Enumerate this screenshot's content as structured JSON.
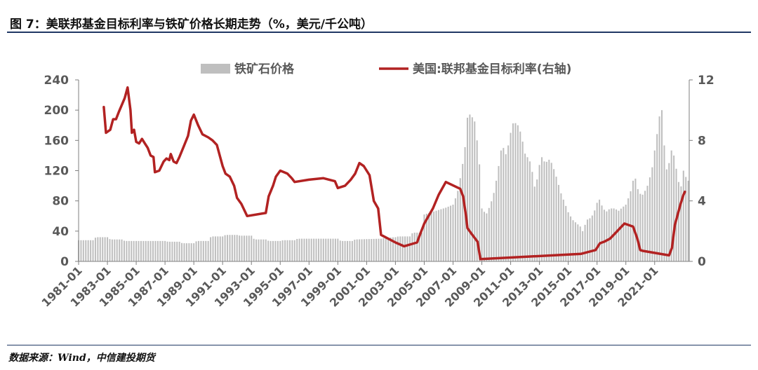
{
  "title": "图 7：美联邦基金目标利率与铁矿价格长期走势（%，美元/千公吨）",
  "source": "数据来源：Wind，中信建投期货",
  "chart_data": {
    "type": "bar+line",
    "title": "图 7：美联邦基金目标利率与铁矿价格长期走势（%，美元/千公吨）",
    "legend": {
      "placement": "top-center"
    },
    "y_left": {
      "ticks": [
        "0",
        "40",
        "80",
        "120",
        "160",
        "200",
        "240"
      ],
      "ylim": [
        0,
        240
      ]
    },
    "y_right": {
      "ticks": [
        "0",
        "4",
        "8",
        "12"
      ],
      "ylim": [
        0,
        12
      ]
    },
    "x_ticks": [
      "1981-01",
      "1983-01",
      "1985-01",
      "1987-01",
      "1989-01",
      "1991-01",
      "1993-01",
      "1995-01",
      "1997-01",
      "1999-01",
      "2001-01",
      "2003-01",
      "2005-01",
      "2007-01",
      "2009-01",
      "2011-01",
      "2013-01",
      "2015-01",
      "2017-01",
      "2019-01",
      "2021-01"
    ],
    "x_range": [
      1981.0,
      2023.4
    ],
    "series": [
      {
        "name": "铁矿石价格",
        "type": "bar",
        "axis": "left",
        "color": "#bfbfbf",
        "points": [
          [
            1981.0,
            28
          ],
          [
            1982.0,
            28
          ],
          [
            1982.2,
            32
          ],
          [
            1983.0,
            32
          ],
          [
            1983.2,
            29
          ],
          [
            1984.0,
            29
          ],
          [
            1984.2,
            27
          ],
          [
            1987.0,
            27
          ],
          [
            1987.2,
            26
          ],
          [
            1988.0,
            26
          ],
          [
            1988.2,
            24
          ],
          [
            1989.0,
            24
          ],
          [
            1989.2,
            27
          ],
          [
            1990.0,
            27
          ],
          [
            1990.2,
            33
          ],
          [
            1991.0,
            33
          ],
          [
            1991.2,
            35
          ],
          [
            1992.0,
            35
          ],
          [
            1992.2,
            34
          ],
          [
            1993.0,
            34
          ],
          [
            1993.2,
            29
          ],
          [
            1994.0,
            29
          ],
          [
            1994.2,
            27
          ],
          [
            1995.0,
            27
          ],
          [
            1995.2,
            28
          ],
          [
            1996.0,
            28
          ],
          [
            1996.2,
            30
          ],
          [
            1999.0,
            30
          ],
          [
            1999.2,
            27
          ],
          [
            2000.0,
            27
          ],
          [
            2000.2,
            29
          ],
          [
            2002.0,
            30
          ],
          [
            2002.2,
            31
          ],
          [
            2003.0,
            32
          ],
          [
            2003.2,
            33
          ],
          [
            2004.0,
            33
          ],
          [
            2004.2,
            38
          ],
          [
            2004.9,
            38
          ],
          [
            2005.0,
            62
          ],
          [
            2005.5,
            65
          ],
          [
            2006.0,
            68
          ],
          [
            2006.5,
            71
          ],
          [
            2007.0,
            75
          ],
          [
            2007.3,
            90
          ],
          [
            2007.6,
            120
          ],
          [
            2007.9,
            160
          ],
          [
            2008.0,
            190
          ],
          [
            2008.2,
            195
          ],
          [
            2008.5,
            185
          ],
          [
            2008.8,
            140
          ],
          [
            2009.0,
            70
          ],
          [
            2009.3,
            62
          ],
          [
            2009.6,
            75
          ],
          [
            2009.9,
            95
          ],
          [
            2010.2,
            130
          ],
          [
            2010.4,
            155
          ],
          [
            2010.7,
            140
          ],
          [
            2011.0,
            170
          ],
          [
            2011.2,
            185
          ],
          [
            2011.5,
            180
          ],
          [
            2011.8,
            165
          ],
          [
            2011.9,
            145
          ],
          [
            2012.1,
            140
          ],
          [
            2012.4,
            130
          ],
          [
            2012.7,
            95
          ],
          [
            2012.9,
            115
          ],
          [
            2013.1,
            140
          ],
          [
            2013.4,
            130
          ],
          [
            2013.7,
            135
          ],
          [
            2013.9,
            128
          ],
          [
            2014.2,
            110
          ],
          [
            2014.5,
            90
          ],
          [
            2014.8,
            75
          ],
          [
            2015.0,
            65
          ],
          [
            2015.3,
            55
          ],
          [
            2015.6,
            50
          ],
          [
            2015.9,
            45
          ],
          [
            2016.0,
            40
          ],
          [
            2016.3,
            55
          ],
          [
            2016.6,
            58
          ],
          [
            2016.9,
            70
          ],
          [
            2017.1,
            85
          ],
          [
            2017.3,
            75
          ],
          [
            2017.6,
            65
          ],
          [
            2017.9,
            70
          ],
          [
            2018.2,
            70
          ],
          [
            2018.5,
            67
          ],
          [
            2018.8,
            72
          ],
          [
            2019.0,
            75
          ],
          [
            2019.3,
            90
          ],
          [
            2019.6,
            115
          ],
          [
            2019.9,
            90
          ],
          [
            2020.2,
            88
          ],
          [
            2020.5,
            100
          ],
          [
            2020.8,
            120
          ],
          [
            2021.1,
            160
          ],
          [
            2021.3,
            185
          ],
          [
            2021.45,
            215
          ],
          [
            2021.6,
            170
          ],
          [
            2021.8,
            120
          ],
          [
            2022.0,
            130
          ],
          [
            2022.2,
            150
          ],
          [
            2022.4,
            135
          ],
          [
            2022.6,
            110
          ],
          [
            2022.8,
            95
          ],
          [
            2023.0,
            120
          ],
          [
            2023.2,
            110
          ],
          [
            2023.4,
            105
          ]
        ]
      },
      {
        "name": "美国:联邦基金目标利率(右轴)",
        "type": "line",
        "axis": "right",
        "color": "#b22222",
        "points": [
          [
            1982.75,
            10.2
          ],
          [
            1982.9,
            8.5
          ],
          [
            1983.2,
            8.7
          ],
          [
            1983.4,
            9.4
          ],
          [
            1983.6,
            9.4
          ],
          [
            1983.8,
            9.9
          ],
          [
            1984.2,
            10.8
          ],
          [
            1984.4,
            11.5
          ],
          [
            1984.6,
            10.0
          ],
          [
            1984.7,
            8.5
          ],
          [
            1984.85,
            8.7
          ],
          [
            1985.0,
            7.9
          ],
          [
            1985.2,
            7.8
          ],
          [
            1985.4,
            8.1
          ],
          [
            1985.6,
            7.8
          ],
          [
            1985.8,
            7.5
          ],
          [
            1986.0,
            7.0
          ],
          [
            1986.2,
            6.9
          ],
          [
            1986.3,
            5.9
          ],
          [
            1986.6,
            6.0
          ],
          [
            1986.9,
            6.6
          ],
          [
            1987.1,
            6.8
          ],
          [
            1987.3,
            6.7
          ],
          [
            1987.4,
            7.1
          ],
          [
            1987.6,
            6.6
          ],
          [
            1987.8,
            6.5
          ],
          [
            1988.0,
            6.9
          ],
          [
            1988.3,
            7.6
          ],
          [
            1988.6,
            8.3
          ],
          [
            1988.8,
            9.3
          ],
          [
            1989.0,
            9.7
          ],
          [
            1989.3,
            9.0
          ],
          [
            1989.6,
            8.4
          ],
          [
            1990.0,
            8.2
          ],
          [
            1990.3,
            8.0
          ],
          [
            1990.6,
            7.7
          ],
          [
            1990.8,
            7.0
          ],
          [
            1991.0,
            6.3
          ],
          [
            1991.2,
            5.8
          ],
          [
            1991.5,
            5.6
          ],
          [
            1991.8,
            5.0
          ],
          [
            1992.0,
            4.2
          ],
          [
            1992.3,
            3.8
          ],
          [
            1992.7,
            3.0
          ],
          [
            1994.0,
            3.2
          ],
          [
            1994.2,
            4.3
          ],
          [
            1994.5,
            5.0
          ],
          [
            1994.7,
            5.6
          ],
          [
            1995.0,
            6.0
          ],
          [
            1995.5,
            5.8
          ],
          [
            1995.8,
            5.5
          ],
          [
            1996.0,
            5.25
          ],
          [
            1997.0,
            5.4
          ],
          [
            1998.0,
            5.5
          ],
          [
            1998.8,
            5.3
          ],
          [
            1999.0,
            4.85
          ],
          [
            1999.5,
            5.0
          ],
          [
            1999.9,
            5.4
          ],
          [
            2000.2,
            5.8
          ],
          [
            2000.5,
            6.5
          ],
          [
            2000.8,
            6.3
          ],
          [
            2001.0,
            6.0
          ],
          [
            2001.2,
            5.7
          ],
          [
            2001.5,
            4.0
          ],
          [
            2001.8,
            3.5
          ],
          [
            2002.0,
            1.75
          ],
          [
            2003.0,
            1.25
          ],
          [
            2003.6,
            1.0
          ],
          [
            2004.5,
            1.25
          ],
          [
            2004.8,
            2.0
          ],
          [
            2005.0,
            2.5
          ],
          [
            2005.3,
            3.0
          ],
          [
            2005.6,
            3.5
          ],
          [
            2006.0,
            4.4
          ],
          [
            2006.5,
            5.25
          ],
          [
            2007.5,
            4.8
          ],
          [
            2007.7,
            4.3
          ],
          [
            2007.9,
            3.0
          ],
          [
            2008.0,
            2.2
          ],
          [
            2008.3,
            1.8
          ],
          [
            2008.7,
            1.3
          ],
          [
            2008.9,
            0.15
          ],
          [
            2015.9,
            0.5
          ],
          [
            2016.9,
            0.75
          ],
          [
            2017.2,
            1.2
          ],
          [
            2017.5,
            1.3
          ],
          [
            2017.9,
            1.5
          ],
          [
            2018.3,
            1.9
          ],
          [
            2018.6,
            2.2
          ],
          [
            2018.9,
            2.5
          ],
          [
            2019.5,
            2.3
          ],
          [
            2019.8,
            1.5
          ],
          [
            2020.0,
            0.75
          ],
          [
            2020.15,
            0.7
          ],
          [
            2022.0,
            0.4
          ],
          [
            2022.2,
            0.9
          ],
          [
            2022.4,
            2.4
          ],
          [
            2022.6,
            3.1
          ],
          [
            2022.8,
            3.8
          ],
          [
            2023.0,
            4.4
          ],
          [
            2023.1,
            4.6
          ]
        ]
      }
    ]
  }
}
